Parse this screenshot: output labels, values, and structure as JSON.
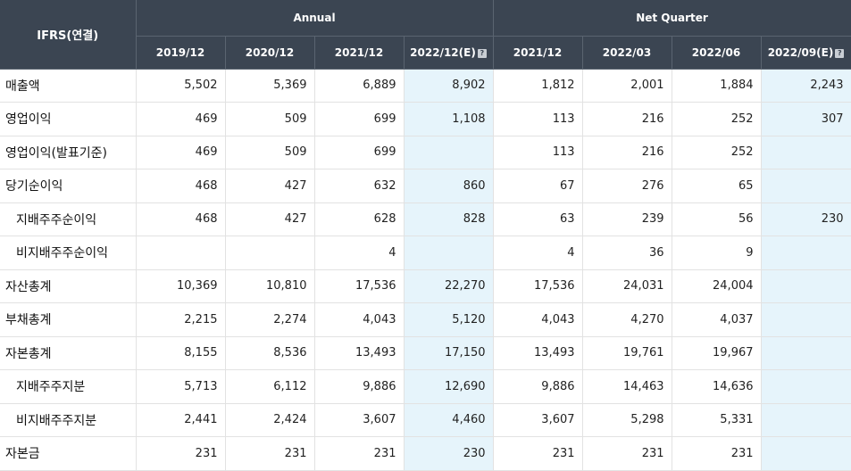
{
  "corner_label": "IFRS(연결)",
  "groups": {
    "annual": "Annual",
    "quarter": "Net Quarter"
  },
  "periods": [
    "2019/12",
    "2020/12",
    "2021/12",
    "2022/12(E)",
    "2021/12",
    "2022/03",
    "2022/06",
    "2022/09(E)"
  ],
  "estimate_icon": "?",
  "rows": [
    {
      "label": "매출액",
      "cells": [
        "5,502",
        "5,369",
        "6,889",
        "8,902",
        "1,812",
        "2,001",
        "1,884",
        "2,243"
      ]
    },
    {
      "label": "영업이익",
      "cells": [
        "469",
        "509",
        "699",
        "1,108",
        "113",
        "216",
        "252",
        "307"
      ]
    },
    {
      "label": "영업이익(발표기준)",
      "cells": [
        "469",
        "509",
        "699",
        "",
        "113",
        "216",
        "252",
        ""
      ]
    },
    {
      "label": "당기순이익",
      "cells": [
        "468",
        "427",
        "632",
        "860",
        "67",
        "276",
        "65",
        ""
      ]
    },
    {
      "label": "지배주주순이익",
      "cells": [
        "468",
        "427",
        "628",
        "828",
        "63",
        "239",
        "56",
        "230"
      ]
    },
    {
      "label": "비지배주주순이익",
      "cells": [
        "",
        "",
        "4",
        "",
        "4",
        "36",
        "9",
        ""
      ]
    },
    {
      "label": "자산총계",
      "cells": [
        "10,369",
        "10,810",
        "17,536",
        "22,270",
        "17,536",
        "24,031",
        "24,004",
        ""
      ]
    },
    {
      "label": "부채총계",
      "cells": [
        "2,215",
        "2,274",
        "4,043",
        "5,120",
        "4,043",
        "4,270",
        "4,037",
        ""
      ]
    },
    {
      "label": "자본총계",
      "cells": [
        "8,155",
        "8,536",
        "13,493",
        "17,150",
        "13,493",
        "19,761",
        "19,967",
        ""
      ]
    },
    {
      "label": "지배주주지분",
      "cells": [
        "5,713",
        "6,112",
        "9,886",
        "12,690",
        "9,886",
        "14,463",
        "14,636",
        ""
      ]
    },
    {
      "label": "비지배주주지분",
      "cells": [
        "2,441",
        "2,424",
        "3,607",
        "4,460",
        "3,607",
        "5,298",
        "5,331",
        ""
      ]
    },
    {
      "label": "자본금",
      "cells": [
        "231",
        "231",
        "231",
        "230",
        "231",
        "231",
        "231",
        ""
      ]
    }
  ]
}
